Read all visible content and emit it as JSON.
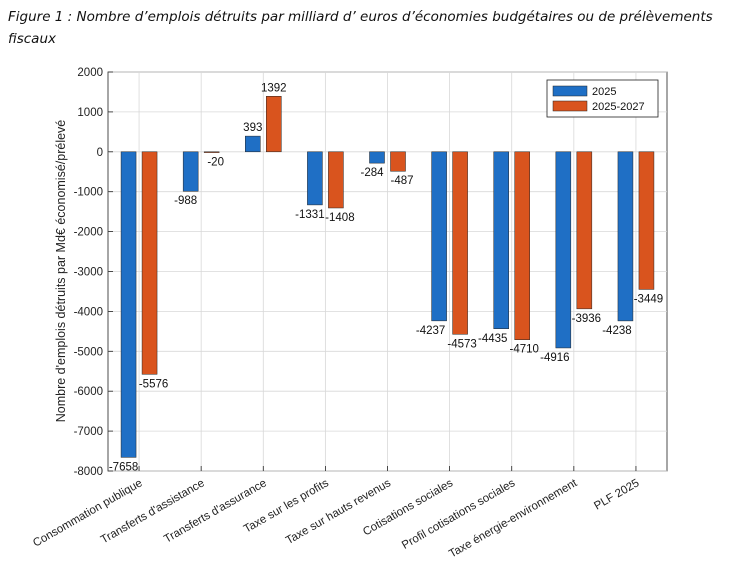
{
  "caption": "Figure 1 : Nombre d’emplois détruits par milliard d’ euros d’économies budgétaires ou de prélèvements fiscaux",
  "chart_data": {
    "type": "bar",
    "title": "",
    "xlabel": "",
    "ylabel": "Nombre d'emplois détruits par Md€ économisé/prélevé",
    "ylim": [
      -8000,
      2000
    ],
    "yticks": [
      2000,
      1000,
      0,
      -1000,
      -2000,
      -3000,
      -4000,
      -5000,
      -6000,
      -7000,
      -8000
    ],
    "grid": true,
    "legend_position": "top-right",
    "categories": [
      "Consommation publique",
      "Transferts d'assistance",
      "Transferts d'assurance",
      "Taxe sur les profits",
      "Taxe sur hauts revenus",
      "Cotisations sociales",
      "Profil cotisations sociales",
      "Taxe énergie-environnement",
      "PLF 2025"
    ],
    "series": [
      {
        "name": "2025",
        "color": "#1f6fc5",
        "values": [
          -7658,
          -988,
          393,
          -1331,
          -284,
          -4237,
          -4435,
          -4916,
          -4238
        ]
      },
      {
        "name": "2025-2027",
        "color": "#d9541e",
        "values": [
          -5576,
          -20,
          1392,
          -1408,
          -487,
          -4573,
          -4710,
          -3936,
          -3449
        ]
      }
    ]
  }
}
